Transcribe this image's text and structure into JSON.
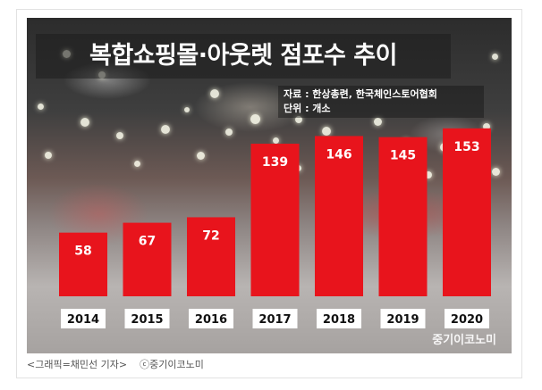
{
  "title": "복합쇼핑몰·아웃렛 점포수 추이",
  "source_line": "자료 : 한상총련, 한국체인스토어협회",
  "unit_line": "단위 : 개소",
  "watermark": "중기이코노미",
  "caption_left": "<그래픽=채민선 기자>",
  "caption_right": "ⓒ중기이코노미",
  "colors": {
    "bar": "#e8141c",
    "label_bg": "#ffffff",
    "label_text": "#111111"
  },
  "chart_data": {
    "type": "bar",
    "categories": [
      "2014",
      "2015",
      "2016",
      "2017",
      "2018",
      "2019",
      "2020"
    ],
    "values": [
      58,
      67,
      72,
      139,
      146,
      145,
      153
    ],
    "title": "복합쇼핑몰·아웃렛 점포수 추이",
    "xlabel": "",
    "ylabel": "",
    "unit": "개소",
    "ylim": [
      0,
      160
    ],
    "grid": false,
    "legend": "none"
  }
}
